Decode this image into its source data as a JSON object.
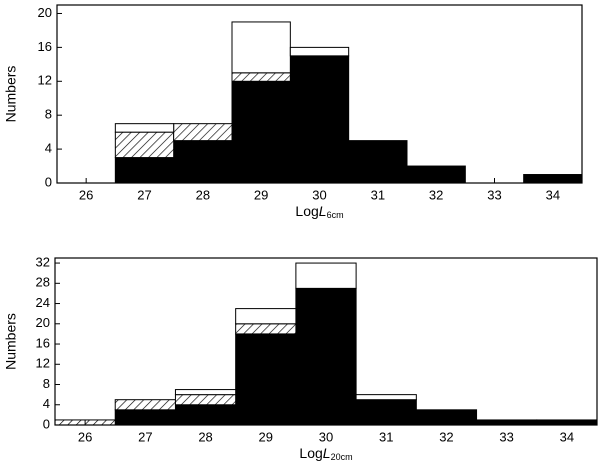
{
  "chart_data": [
    {
      "type": "histogram",
      "ylabel": "Numbers",
      "xlabel": [
        "Log",
        "L",
        "6cm"
      ],
      "bins": [
        25.5,
        26.5,
        27.5,
        28.5,
        29.5,
        30.5,
        31.5,
        32.5,
        33.5,
        34.5
      ],
      "series": [
        {
          "color": "#000000",
          "values": [
            0,
            3,
            5,
            12,
            15,
            5,
            2,
            0,
            1
          ]
        },
        {
          "color": "#000000",
          "hatch": true,
          "values": [
            0,
            3,
            2,
            1,
            0,
            0,
            0,
            0,
            0
          ]
        },
        {
          "color": "#ffffff",
          "values": [
            0,
            1,
            0,
            6,
            1,
            0,
            0,
            0,
            0
          ]
        }
      ],
      "xlim": [
        25.5,
        34.5
      ],
      "xticks": [
        26,
        27,
        28,
        29,
        30,
        31,
        32,
        33,
        34
      ],
      "ylim": [
        0,
        21
      ],
      "yticks": [
        0,
        4,
        8,
        12,
        16,
        20
      ]
    },
    {
      "type": "histogram",
      "ylabel": "Numbers",
      "xlabel": [
        "Log",
        "L",
        "20cm"
      ],
      "bins": [
        25.5,
        26.5,
        27.5,
        28.5,
        29.5,
        30.5,
        31.5,
        32.5,
        33.5,
        34.5
      ],
      "series": [
        {
          "color": "#000000",
          "values": [
            0,
            3,
            4,
            18,
            27,
            5,
            3,
            1,
            1
          ]
        },
        {
          "color": "#000000",
          "hatch": true,
          "values": [
            1,
            2,
            2,
            2,
            0,
            0,
            0,
            0,
            0
          ]
        },
        {
          "color": "#ffffff",
          "values": [
            0,
            0,
            1,
            3,
            5,
            1,
            0,
            0,
            0
          ]
        }
      ],
      "xlim": [
        25.5,
        34.5
      ],
      "xticks": [
        26,
        27,
        28,
        29,
        30,
        31,
        32,
        33,
        34
      ],
      "ylim": [
        0,
        33
      ],
      "yticks": [
        0,
        4,
        8,
        12,
        16,
        20,
        24,
        28,
        32
      ]
    }
  ]
}
